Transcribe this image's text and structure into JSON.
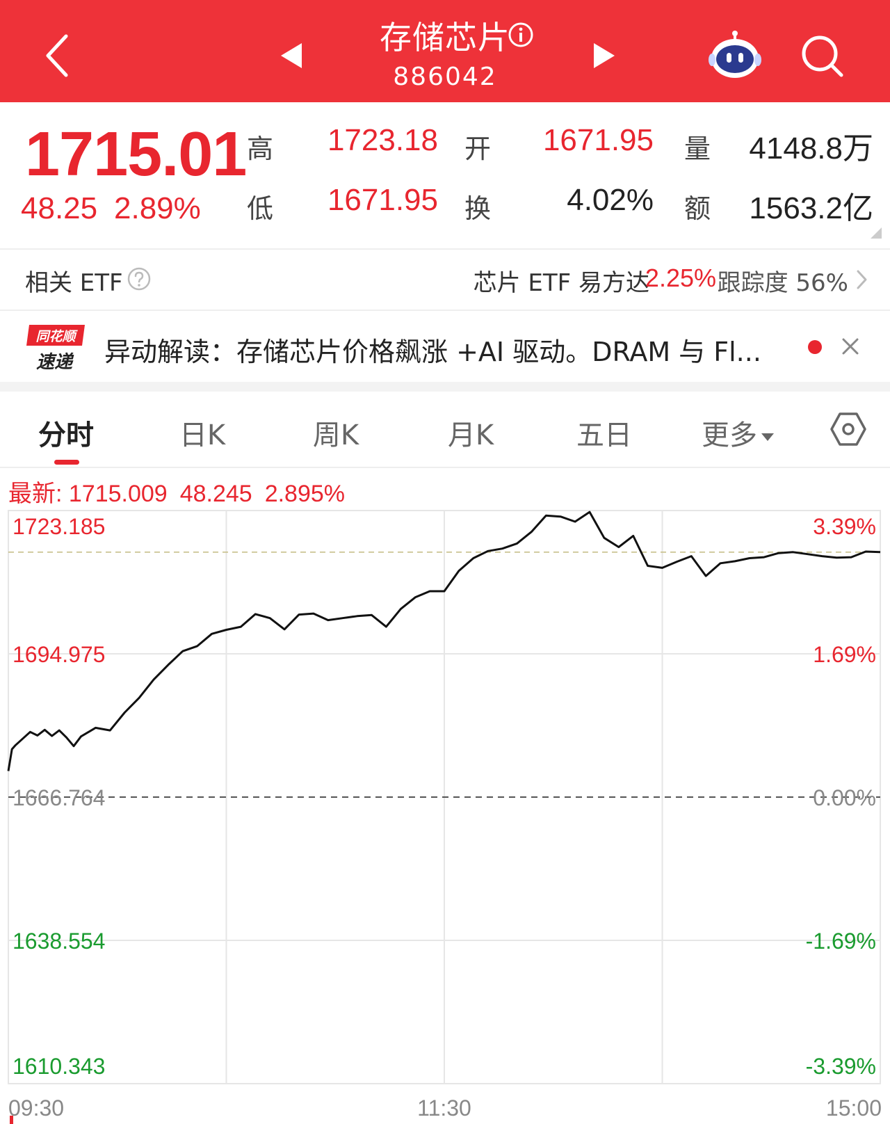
{
  "header": {
    "title": "存储芯片",
    "code": "886042",
    "background": "#ee3239"
  },
  "quote": {
    "price": "1715.01",
    "change": "48.25",
    "change_pct": "2.89%",
    "high_label": "高",
    "high": "1723.18",
    "open_label": "开",
    "open": "1671.95",
    "volume_label": "量",
    "volume": "4148.8万",
    "low_label": "低",
    "low": "1671.95",
    "turnover_label": "换",
    "turnover": "4.02%",
    "amount_label": "额",
    "amount": "1563.2亿",
    "up_color": "#e8262f",
    "down_color": "#1a9b2f"
  },
  "etf": {
    "label": "相关 ETF",
    "name": "芯片 ETF 易方达",
    "change": "2.25%",
    "tracking": "跟踪度  56%"
  },
  "news": {
    "logo_top": "同花顺",
    "logo_bottom": "速递",
    "text": "异动解读：存储芯片价格飙涨 +AI 驱动。DRAM 与 Fl..."
  },
  "tabs": [
    {
      "label": "分时",
      "active": true
    },
    {
      "label": "日K",
      "active": false
    },
    {
      "label": "周K",
      "active": false
    },
    {
      "label": "月K",
      "active": false
    },
    {
      "label": "五日",
      "active": false
    },
    {
      "label": "更多",
      "active": false
    }
  ],
  "latest": {
    "label": "最新: 1715.009",
    "change": "48.245",
    "change_pct": "2.895%"
  },
  "chart_data": {
    "type": "line",
    "title": "",
    "xlabel": "",
    "ylabel": "",
    "y_ticks": [
      "1723.185",
      "1694.975",
      "1666.764",
      "1638.554",
      "1610.343"
    ],
    "y_tick_values": [
      1723.185,
      1694.975,
      1666.764,
      1638.554,
      1610.343
    ],
    "pct_ticks": [
      "3.39%",
      "1.69%",
      "0.00%",
      "-1.69%",
      "-3.39%"
    ],
    "x_ticks": [
      "09:30",
      "11:30",
      "15:00"
    ],
    "prev_close": 1666.764,
    "ylim": [
      1610.343,
      1723.185
    ],
    "x_range_minutes": [
      0,
      240
    ],
    "grid": true,
    "series": [
      {
        "x": [
          0,
          1,
          2,
          4,
          6,
          8,
          10,
          12,
          14,
          16,
          18,
          20,
          24,
          28,
          32,
          36,
          40,
          44,
          48,
          52,
          56,
          60,
          64,
          68,
          72,
          76,
          80,
          84,
          88,
          92,
          96,
          100,
          104,
          108,
          112,
          116,
          120,
          124,
          128,
          132,
          136,
          140,
          144,
          148,
          152,
          156,
          160,
          164,
          168,
          172,
          176,
          180,
          184,
          188,
          192,
          196,
          200,
          204,
          208,
          212,
          216,
          220,
          224,
          228,
          232,
          236,
          240
        ],
        "y": [
          1671.9,
          1676.2,
          1677.0,
          1678.3,
          1679.6,
          1678.9,
          1680.0,
          1678.8,
          1679.9,
          1678.5,
          1676.8,
          1678.7,
          1680.4,
          1679.9,
          1683.4,
          1686.3,
          1689.9,
          1692.8,
          1695.5,
          1696.5,
          1698.9,
          1699.7,
          1700.3,
          1702.8,
          1702.0,
          1699.8,
          1702.7,
          1702.9,
          1701.6,
          1702.0,
          1702.4,
          1702.6,
          1700.3,
          1703.8,
          1706.1,
          1707.3,
          1707.3,
          1711.3,
          1713.8,
          1715.2,
          1715.7,
          1716.7,
          1719.0,
          1722.2,
          1722.0,
          1721.0,
          1722.9,
          1717.8,
          1716.0,
          1718.2,
          1712.3,
          1711.9,
          1713.1,
          1714.2,
          1710.3,
          1712.8,
          1713.2,
          1713.8,
          1714.0,
          1714.8,
          1715.0,
          1714.6,
          1714.2,
          1713.9,
          1714.0,
          1715.1,
          1715.0
        ],
        "color": "#111111"
      }
    ]
  }
}
